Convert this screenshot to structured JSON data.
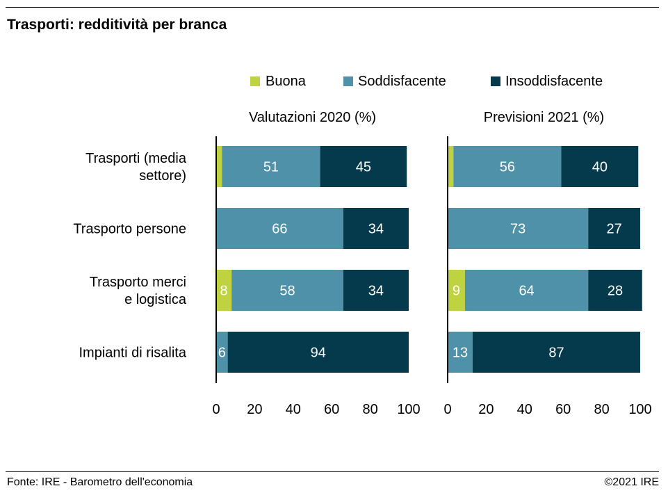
{
  "title": "Trasporti: redditività per branca",
  "footer": {
    "source": "Fonte: IRE - Barometro dell'economia",
    "copyright": "©2021 IRE"
  },
  "colors": {
    "Buona": "#bfd341",
    "Soddisfacente": "#4f91a8",
    "Insoddisfacente": "#043a4c"
  },
  "chart_data": {
    "type": "bar",
    "orientation": "horizontal",
    "stacked": true,
    "legend": [
      "Buona",
      "Soddisfacente",
      "Insoddisfacente"
    ],
    "legend_placement": "top",
    "categories": [
      [
        "Trasporti (media",
        "settore)"
      ],
      [
        "Trasporto persone"
      ],
      [
        "Trasporto merci",
        "e logistica"
      ],
      [
        "Impianti di risalita"
      ]
    ],
    "panels": [
      {
        "title": "Valutazioni 2020 (%)",
        "xlim": [
          0,
          100
        ],
        "ticks": [
          0,
          20,
          40,
          60,
          80,
          100
        ],
        "series": [
          {
            "name": "Buona",
            "values": [
              3,
              0,
              8,
              0
            ],
            "labels": [
              "",
              "",
              "8",
              ""
            ]
          },
          {
            "name": "Soddisfacente",
            "values": [
              51,
              66,
              58,
              6
            ],
            "labels": [
              "51",
              "66",
              "58",
              "6"
            ]
          },
          {
            "name": "Insoddisfacente",
            "values": [
              45,
              34,
              34,
              94
            ],
            "labels": [
              "45",
              "34",
              "34",
              "94"
            ]
          }
        ]
      },
      {
        "title": "Previsioni 2021 (%)",
        "xlim": [
          0,
          100
        ],
        "ticks": [
          0,
          20,
          40,
          60,
          80,
          100
        ],
        "series": [
          {
            "name": "Buona",
            "values": [
              3,
              0,
              9,
              0
            ],
            "labels": [
              "",
              "",
              "9",
              ""
            ]
          },
          {
            "name": "Soddisfacente",
            "values": [
              56,
              73,
              64,
              13
            ],
            "labels": [
              "56",
              "73",
              "64",
              "13"
            ]
          },
          {
            "name": "Insoddisfacente",
            "values": [
              40,
              27,
              28,
              87
            ],
            "labels": [
              "40",
              "27",
              "28",
              "87"
            ]
          }
        ]
      }
    ]
  }
}
